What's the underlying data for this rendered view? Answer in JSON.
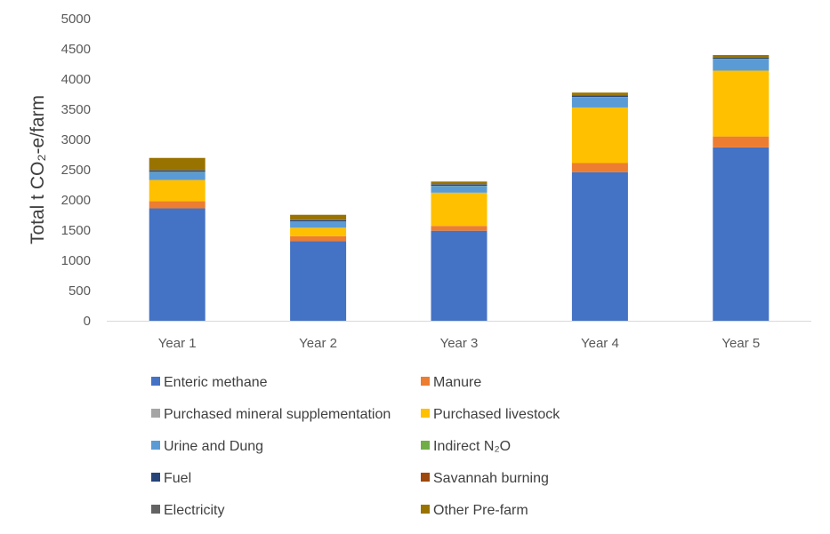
{
  "chart_data": {
    "type": "bar",
    "stacked": true,
    "categories": [
      "Year 1",
      "Year 2",
      "Year 3",
      "Year 4",
      "Year 5"
    ],
    "ylabel": "Total t CO₂-e/farm",
    "ylim": [
      0,
      5000
    ],
    "yticks": [
      0,
      500,
      1000,
      1500,
      2000,
      2500,
      3000,
      3500,
      4000,
      4500,
      5000
    ],
    "grid": false,
    "legend_position": "bottom",
    "series": [
      {
        "name": "Enteric methane",
        "color": "#4472C4",
        "values": [
          1860,
          1320,
          1490,
          2460,
          2870
        ]
      },
      {
        "name": "Manure",
        "color": "#ED7D31",
        "values": [
          120,
          80,
          80,
          150,
          180
        ]
      },
      {
        "name": "Purchased mineral supplementation",
        "color": "#A5A5A5",
        "values": [
          0,
          0,
          0,
          0,
          0
        ]
      },
      {
        "name": "Purchased livestock",
        "color": "#FFC000",
        "values": [
          350,
          140,
          550,
          920,
          1090
        ]
      },
      {
        "name": "Urine and Dung",
        "color": "#5B9BD5",
        "values": [
          130,
          100,
          110,
          170,
          190
        ]
      },
      {
        "name": "Indirect N₂O",
        "color": "#70AD47",
        "values": [
          5,
          4,
          4,
          6,
          7
        ]
      },
      {
        "name": "Fuel",
        "color": "#264478",
        "values": [
          20,
          20,
          20,
          20,
          20
        ]
      },
      {
        "name": "Savannah burning",
        "color": "#9E480E",
        "values": [
          0,
          0,
          0,
          0,
          0
        ]
      },
      {
        "name": "Electricity",
        "color": "#636363",
        "values": [
          10,
          10,
          10,
          10,
          10
        ]
      },
      {
        "name": "Other Pre-farm",
        "color": "#997300",
        "values": [
          200,
          80,
          40,
          40,
          30
        ]
      }
    ]
  }
}
